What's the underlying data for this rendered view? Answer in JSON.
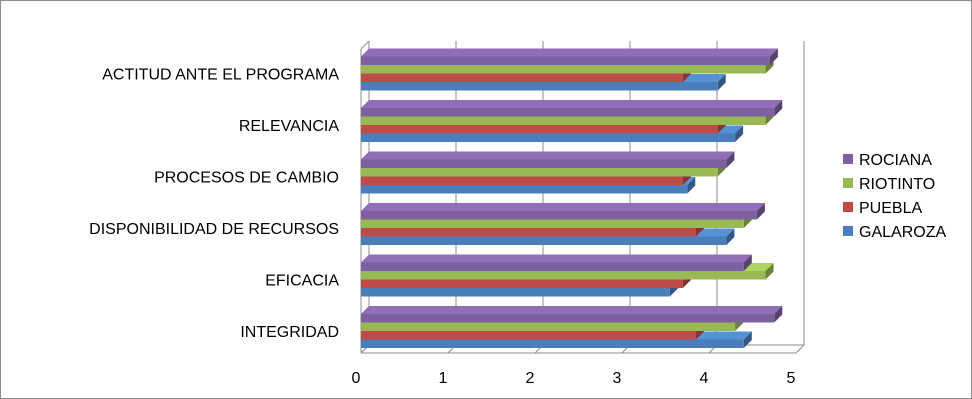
{
  "chart_data": {
    "type": "bar",
    "orientation": "horizontal",
    "three_d": true,
    "categories": [
      "INTEGRIDAD",
      "EFICACIA",
      "DISPONIBILIDAD DE RECURSOS",
      "PROCESOS DE CAMBIO",
      "RELEVANCIA",
      "ACTITUD ANTE EL PROGRAMA"
    ],
    "series": [
      {
        "name": "GALAROZA",
        "color": "#4a7ebb",
        "values": [
          4.4,
          3.55,
          4.2,
          3.75,
          4.3,
          4.1
        ]
      },
      {
        "name": "PUEBLA",
        "color": "#be4b48",
        "values": [
          3.85,
          3.7,
          3.85,
          3.7,
          4.1,
          3.7
        ]
      },
      {
        "name": "RIOTINTO",
        "color": "#98b954",
        "values": [
          4.3,
          4.65,
          4.4,
          4.1,
          4.65,
          4.65
        ]
      },
      {
        "name": "ROCIANA",
        "color": "#7d60a0",
        "values": [
          4.75,
          4.4,
          4.55,
          4.2,
          4.75,
          4.7
        ]
      }
    ],
    "xlim": [
      0,
      5
    ],
    "x_ticks": [
      "0",
      "1",
      "2",
      "3",
      "4",
      "5"
    ],
    "grid": "vertical",
    "legend_position": "right",
    "title": "",
    "xlabel": "",
    "ylabel": ""
  }
}
